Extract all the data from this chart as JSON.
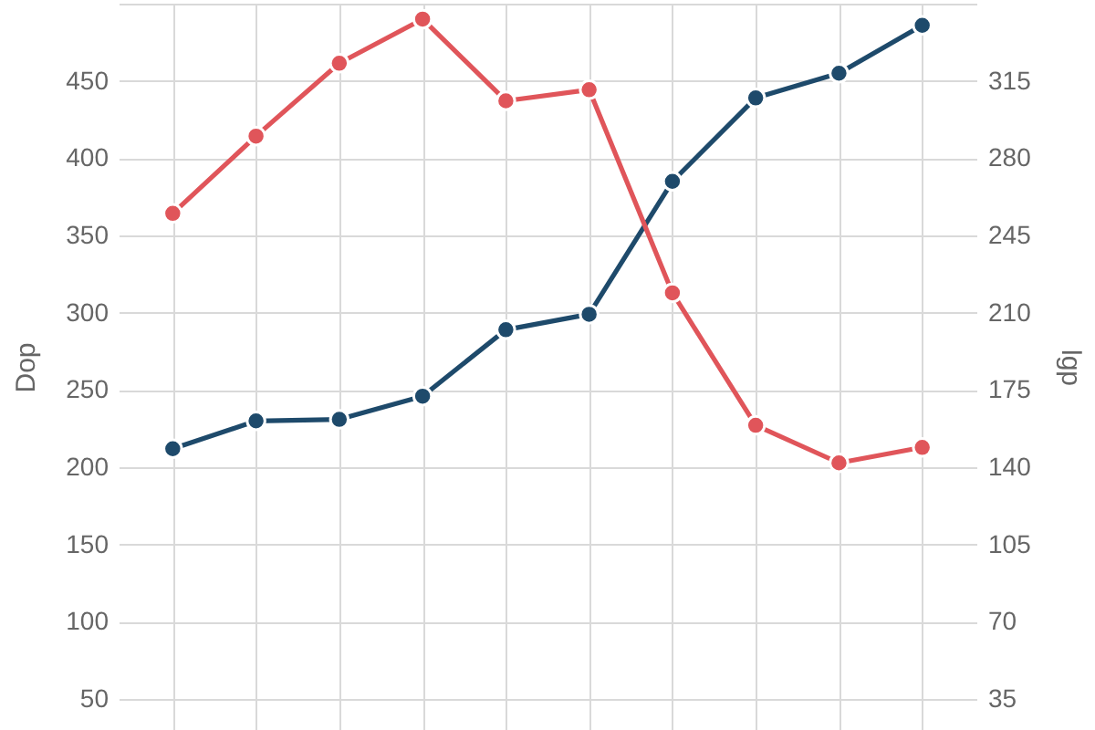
{
  "chart_data": {
    "type": "line",
    "ylabel": "Dop",
    "y2label": "lgp",
    "categories": [
      null,
      null,
      null,
      null,
      null,
      null,
      null,
      null,
      null,
      null
    ],
    "series": [
      {
        "color": "#1e4a6b",
        "axis": "y",
        "values": [
          212,
          230,
          231,
          246,
          289,
          299,
          385,
          439,
          455,
          486
        ]
      },
      {
        "color": "#e0555a",
        "axis": "y2",
        "values": [
          255,
          290,
          323,
          343,
          306,
          311,
          219,
          159,
          142,
          149
        ]
      }
    ],
    "ylim": [
      30,
      500
    ],
    "yticks": [
      50,
      100,
      150,
      200,
      250,
      300,
      350,
      400,
      450,
      {
        "value": 500,
        "label": null
      }
    ],
    "y2lim": [
      21,
      350
    ],
    "y2ticks": [
      35,
      70,
      105,
      140,
      175,
      210,
      245,
      280,
      315
    ],
    "grid": true,
    "marker": "circle",
    "line_style": "solid"
  }
}
